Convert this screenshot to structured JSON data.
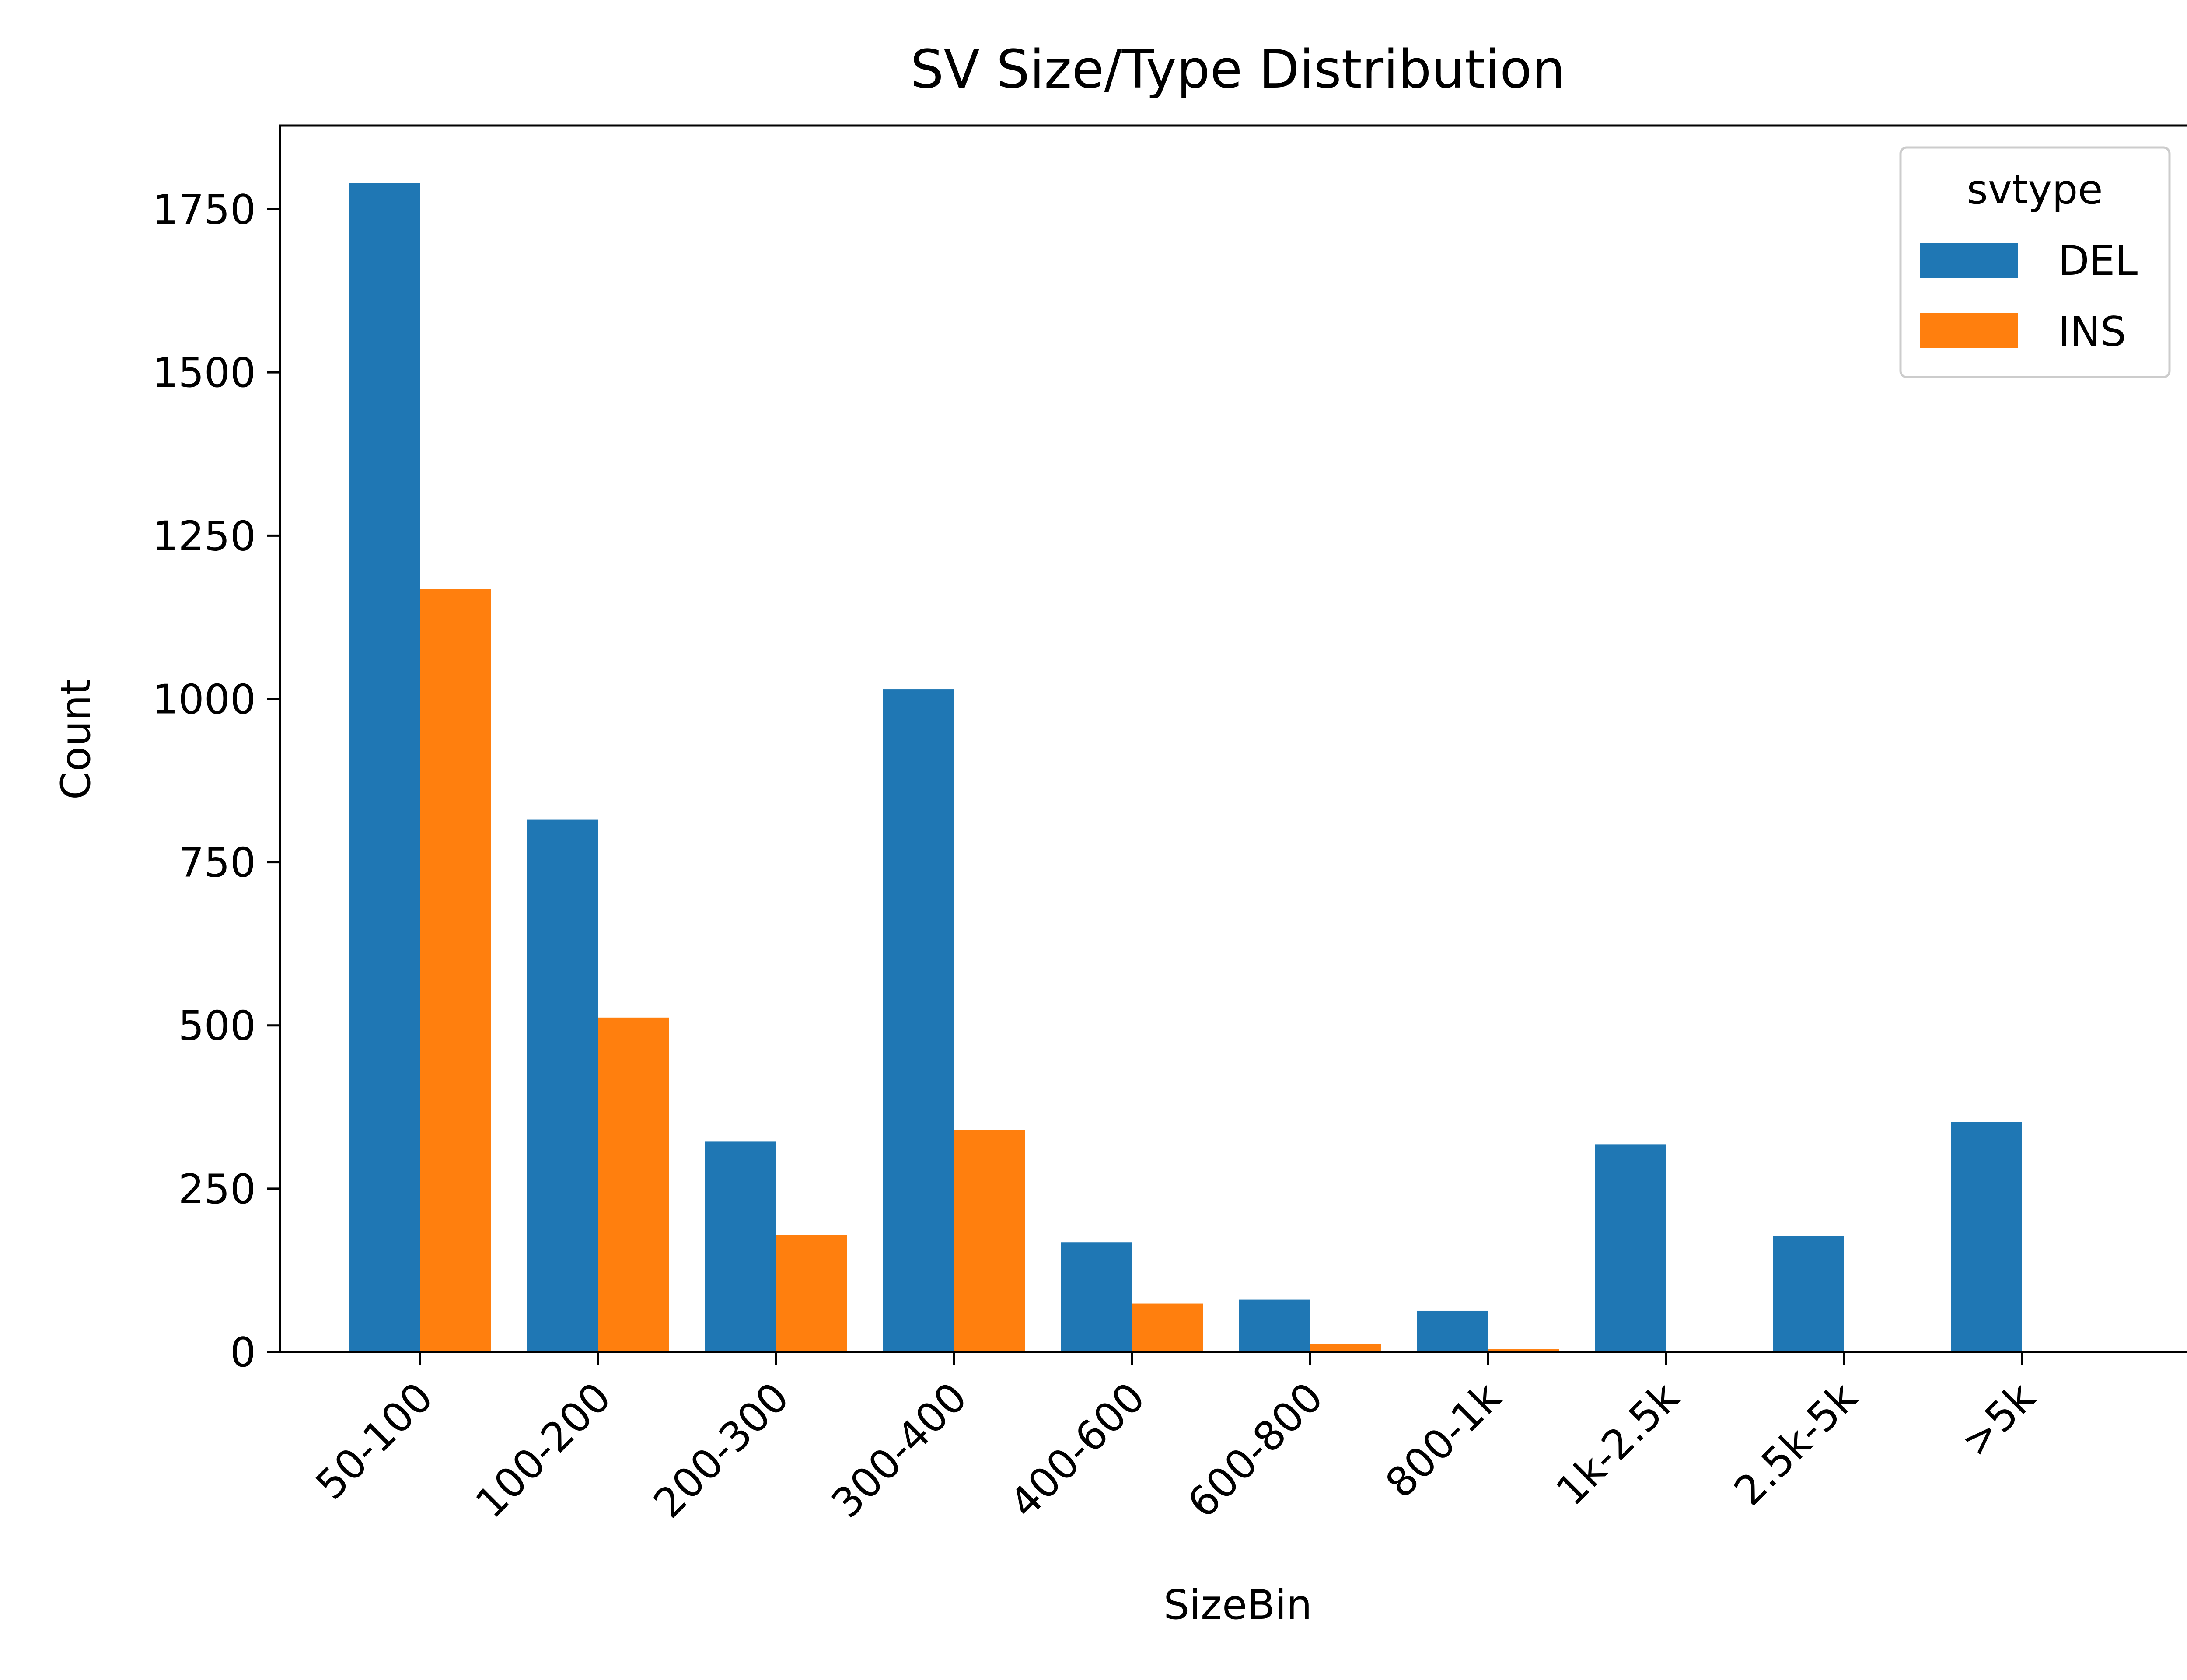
{
  "chart_data": {
    "type": "bar",
    "title": "SV Size/Type Distribution",
    "xlabel": "SizeBin",
    "ylabel": "Count",
    "categories": [
      "50-100",
      "100-200",
      "200-300",
      "300-400",
      "400-600",
      "600-800",
      "800-1k",
      "1k-2.5k",
      "2.5k-5k",
      ">5k"
    ],
    "series": [
      {
        "name": "DEL",
        "color": "#1f77b4",
        "values": [
          1790,
          815,
          322,
          1015,
          168,
          80,
          63,
          318,
          178,
          352
        ]
      },
      {
        "name": "INS",
        "color": "#ff7f0e",
        "values": [
          1168,
          512,
          179,
          340,
          74,
          12,
          4,
          0,
          0,
          0
        ]
      }
    ],
    "ylim": [
      0,
      1878
    ],
    "yticks": [
      0,
      250,
      500,
      750,
      1000,
      1250,
      1500,
      1750
    ],
    "legend": {
      "title": "svtype",
      "placement": "top-right"
    },
    "grid": false
  }
}
